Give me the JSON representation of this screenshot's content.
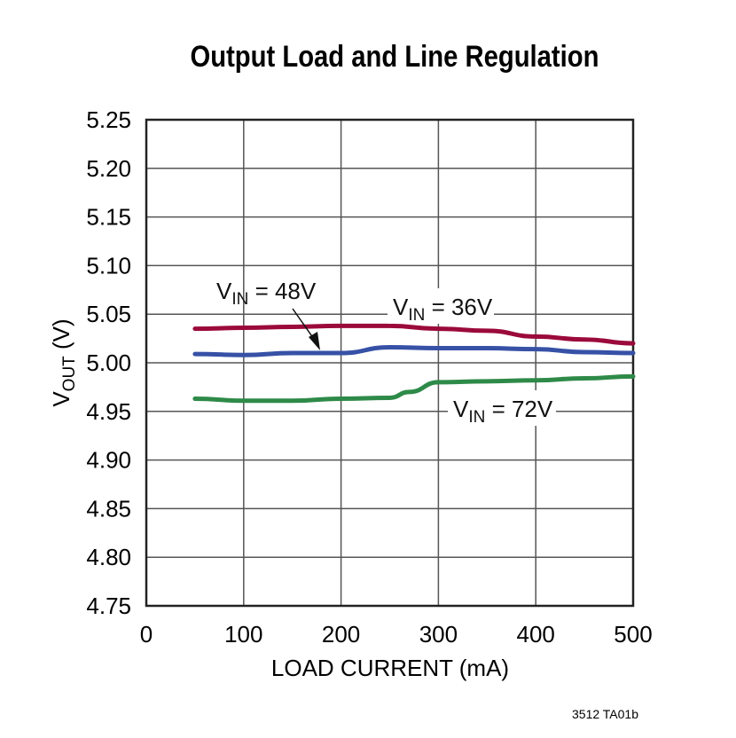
{
  "chart_data": {
    "type": "line",
    "title": "Output Load and Line Regulation",
    "xlabel": "LOAD CURRENT (mA)",
    "ylabel": {
      "main": "V",
      "sub": "OUT",
      "suffix": " (V)"
    },
    "xlim": [
      0,
      500
    ],
    "ylim": [
      4.75,
      5.25
    ],
    "xticks": [
      "0",
      "100",
      "200",
      "300",
      "400",
      "500"
    ],
    "yticks": [
      "4.75",
      "4.80",
      "4.85",
      "4.90",
      "4.95",
      "5.00",
      "5.05",
      "5.10",
      "5.15",
      "5.20",
      "5.25"
    ],
    "grid": true,
    "series": [
      {
        "name": "VIN = 36V",
        "label": {
          "main": "V",
          "sub": "IN",
          "suffix": " = 36V"
        },
        "color": "#9b0a3a",
        "x": [
          50,
          100,
          150,
          200,
          250,
          300,
          350,
          400,
          450,
          500
        ],
        "y": [
          5.035,
          5.036,
          5.037,
          5.038,
          5.038,
          5.035,
          5.033,
          5.027,
          5.024,
          5.02
        ]
      },
      {
        "name": "VIN = 48V",
        "label": {
          "main": "V",
          "sub": "IN",
          "suffix": " = 48V"
        },
        "color": "#3651a6",
        "x": [
          50,
          100,
          150,
          200,
          250,
          300,
          350,
          400,
          450,
          500
        ],
        "y": [
          5.009,
          5.008,
          5.01,
          5.01,
          5.016,
          5.015,
          5.015,
          5.014,
          5.011,
          5.01
        ]
      },
      {
        "name": "VIN = 72V",
        "label": {
          "main": "V",
          "sub": "IN",
          "suffix": " = 72V"
        },
        "color": "#2e8a48",
        "x": [
          50,
          100,
          150,
          200,
          250,
          270,
          300,
          350,
          400,
          450,
          500
        ],
        "y": [
          4.963,
          4.961,
          4.961,
          4.963,
          4.964,
          4.97,
          4.98,
          4.981,
          4.982,
          4.984,
          4.986
        ]
      }
    ],
    "footnote": "3512 TA01b"
  }
}
